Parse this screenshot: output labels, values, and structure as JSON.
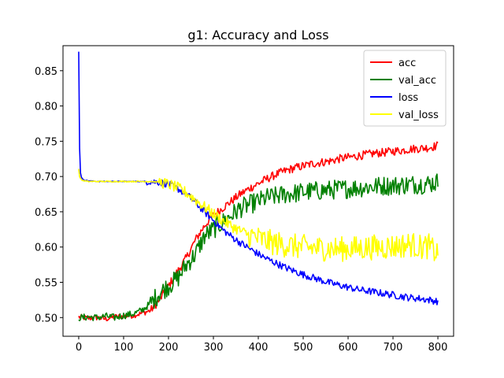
{
  "chart_data": {
    "type": "line",
    "title": "g1: Accuracy and Loss",
    "xlabel": "",
    "ylabel": "",
    "xlim": [
      -35,
      835
    ],
    "ylim": [
      0.4735,
      0.8855
    ],
    "x_ticks": [
      0,
      100,
      200,
      300,
      400,
      500,
      600,
      700,
      800
    ],
    "x_tick_labels": [
      "0",
      "100",
      "200",
      "300",
      "400",
      "500",
      "600",
      "700",
      "800"
    ],
    "y_ticks": [
      0.5,
      0.55,
      0.6,
      0.65,
      0.7,
      0.75,
      0.8,
      0.85
    ],
    "y_tick_labels": [
      "0.50",
      "0.55",
      "0.60",
      "0.65",
      "0.70",
      "0.75",
      "0.80",
      "0.85"
    ],
    "grid": false,
    "legend_position": "top-right",
    "series": [
      {
        "name": "acc",
        "color": "#ff0000",
        "x": [
          0,
          10,
          20,
          40,
          60,
          80,
          100,
          120,
          140,
          160,
          180,
          200,
          220,
          240,
          260,
          280,
          300,
          320,
          340,
          360,
          380,
          400,
          420,
          440,
          460,
          480,
          500,
          520,
          540,
          560,
          580,
          600,
          620,
          640,
          660,
          680,
          700,
          720,
          740,
          760,
          780,
          800
        ],
        "values": [
          0.501,
          0.5,
          0.499,
          0.5,
          0.498,
          0.501,
          0.502,
          0.503,
          0.506,
          0.51,
          0.525,
          0.545,
          0.565,
          0.585,
          0.61,
          0.63,
          0.645,
          0.655,
          0.665,
          0.675,
          0.683,
          0.69,
          0.697,
          0.703,
          0.708,
          0.712,
          0.715,
          0.718,
          0.72,
          0.722,
          0.725,
          0.727,
          0.729,
          0.731,
          0.733,
          0.734,
          0.736,
          0.737,
          0.739,
          0.74,
          0.741,
          0.744
        ]
      },
      {
        "name": "val_acc",
        "color": "#008000",
        "x": [
          0,
          10,
          20,
          40,
          60,
          80,
          100,
          120,
          140,
          160,
          180,
          200,
          220,
          240,
          260,
          280,
          300,
          320,
          340,
          360,
          380,
          400,
          420,
          440,
          460,
          480,
          500,
          520,
          540,
          560,
          580,
          600,
          620,
          640,
          660,
          680,
          700,
          720,
          740,
          760,
          780,
          800
        ],
        "values": [
          0.5,
          0.5,
          0.501,
          0.5,
          0.502,
          0.5,
          0.503,
          0.505,
          0.51,
          0.52,
          0.535,
          0.545,
          0.555,
          0.575,
          0.59,
          0.615,
          0.625,
          0.635,
          0.645,
          0.655,
          0.66,
          0.665,
          0.67,
          0.672,
          0.675,
          0.676,
          0.678,
          0.679,
          0.68,
          0.681,
          0.682,
          0.683,
          0.684,
          0.685,
          0.686,
          0.687,
          0.687,
          0.688,
          0.689,
          0.689,
          0.69,
          0.692
        ]
      },
      {
        "name": "loss",
        "color": "#0000ff",
        "x": [
          0,
          1,
          2,
          3,
          5,
          8,
          12,
          20,
          40,
          60,
          80,
          100,
          120,
          140,
          160,
          180,
          200,
          220,
          240,
          260,
          280,
          300,
          320,
          340,
          360,
          380,
          400,
          420,
          440,
          460,
          480,
          500,
          520,
          540,
          560,
          580,
          600,
          620,
          640,
          660,
          680,
          700,
          720,
          740,
          760,
          780,
          800
        ],
        "values": [
          0.877,
          0.8,
          0.74,
          0.71,
          0.7,
          0.697,
          0.695,
          0.694,
          0.693,
          0.693,
          0.693,
          0.693,
          0.693,
          0.693,
          0.693,
          0.692,
          0.689,
          0.683,
          0.675,
          0.663,
          0.65,
          0.638,
          0.625,
          0.615,
          0.606,
          0.598,
          0.59,
          0.583,
          0.577,
          0.571,
          0.566,
          0.561,
          0.557,
          0.553,
          0.549,
          0.546,
          0.543,
          0.54,
          0.538,
          0.536,
          0.534,
          0.532,
          0.53,
          0.528,
          0.527,
          0.525,
          0.523
        ]
      },
      {
        "name": "val_loss",
        "color": "#ffff00",
        "x": [
          0,
          2,
          5,
          10,
          20,
          40,
          60,
          80,
          100,
          120,
          140,
          160,
          180,
          200,
          220,
          240,
          260,
          280,
          300,
          320,
          340,
          360,
          380,
          400,
          420,
          440,
          460,
          480,
          500,
          520,
          540,
          560,
          580,
          600,
          620,
          640,
          660,
          680,
          700,
          720,
          740,
          760,
          780,
          800
        ],
        "values": [
          0.71,
          0.7,
          0.696,
          0.694,
          0.693,
          0.693,
          0.693,
          0.693,
          0.693,
          0.693,
          0.693,
          0.693,
          0.692,
          0.689,
          0.684,
          0.677,
          0.667,
          0.657,
          0.647,
          0.638,
          0.63,
          0.623,
          0.617,
          0.612,
          0.608,
          0.605,
          0.603,
          0.601,
          0.6,
          0.599,
          0.598,
          0.598,
          0.597,
          0.598,
          0.598,
          0.599,
          0.6,
          0.6,
          0.601,
          0.602,
          0.604,
          0.6,
          0.601,
          0.59
        ]
      }
    ]
  }
}
